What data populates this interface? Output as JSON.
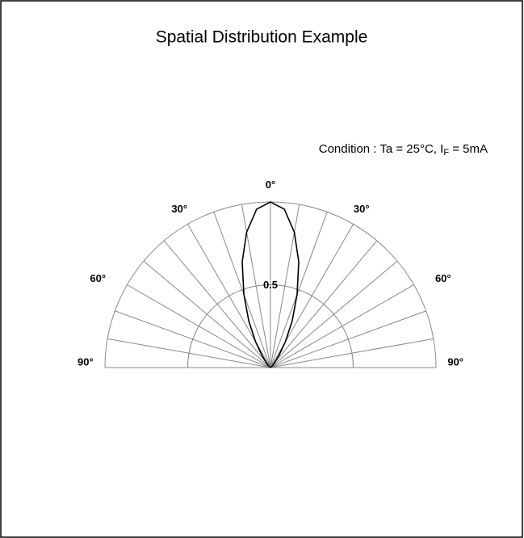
{
  "chart_data": {
    "type": "polar",
    "title": "Spatial Distribution Example",
    "condition": {
      "text": "Condition : Ta = 25°C, I",
      "sub": "F",
      "tail": " = 5mA"
    },
    "x": [
      -90,
      -85,
      -80,
      -75,
      -70,
      -65,
      -60,
      -55,
      -50,
      -45,
      -40,
      -35,
      -30,
      -25,
      -20,
      -15,
      -10,
      -5,
      0,
      5,
      10,
      15,
      20,
      25,
      30,
      35,
      40,
      45,
      50,
      55,
      60,
      65,
      70,
      75,
      80,
      85,
      90
    ],
    "values": [
      0,
      0,
      0,
      0,
      0,
      0,
      0,
      0,
      0.01,
      0.02,
      0.04,
      0.09,
      0.18,
      0.31,
      0.47,
      0.66,
      0.83,
      0.96,
      1,
      0.96,
      0.83,
      0.66,
      0.47,
      0.31,
      0.18,
      0.09,
      0.04,
      0.02,
      0.01,
      0,
      0,
      0,
      0,
      0,
      0,
      0,
      0
    ],
    "color": "#000000",
    "xlim": [
      -90,
      90
    ],
    "xticks": [
      {
        "value": -90,
        "label": "90°"
      },
      {
        "value": -60,
        "label": "60°"
      },
      {
        "value": -30,
        "label": "30°"
      },
      {
        "value": 0,
        "label": "0°"
      },
      {
        "value": 30,
        "label": "30°"
      },
      {
        "value": 60,
        "label": "60°"
      },
      {
        "value": 90,
        "label": "90°"
      }
    ],
    "ylim": [
      0,
      1
    ],
    "yticks": [
      {
        "value": 0.5,
        "label": "0.5"
      }
    ],
    "grid": true,
    "grid_step": 10
  }
}
